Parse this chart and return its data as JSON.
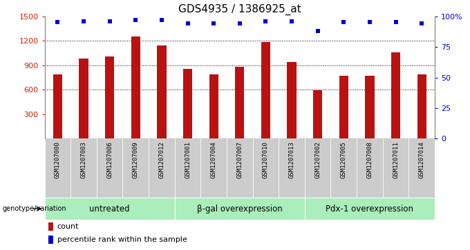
{
  "title": "GDS4935 / 1386925_at",
  "samples": [
    "GSM1207000",
    "GSM1207003",
    "GSM1207006",
    "GSM1207009",
    "GSM1207012",
    "GSM1207001",
    "GSM1207004",
    "GSM1207007",
    "GSM1207010",
    "GSM1207013",
    "GSM1207002",
    "GSM1207005",
    "GSM1207008",
    "GSM1207011",
    "GSM1207014"
  ],
  "counts": [
    790,
    980,
    1010,
    1255,
    1145,
    855,
    790,
    880,
    1185,
    940,
    595,
    775,
    775,
    1060,
    790
  ],
  "percentiles": [
    95,
    96,
    96,
    97,
    97,
    94,
    94,
    94,
    96,
    96,
    88,
    95,
    95,
    95,
    94
  ],
  "groups": [
    {
      "label": "untreated",
      "start": 0,
      "end": 5
    },
    {
      "label": "β-gal overexpression",
      "start": 5,
      "end": 10
    },
    {
      "label": "Pdx-1 overexpression",
      "start": 10,
      "end": 15
    }
  ],
  "bar_color": "#bb1111",
  "dot_color": "#0000cc",
  "group_color": "#aaeebb",
  "ylabel_left_color": "#cc2200",
  "ylabel_right_color": "#0000cc",
  "ylim_left": [
    0,
    1500
  ],
  "ylim_right": [
    0,
    100
  ],
  "yticks_left": [
    300,
    600,
    900,
    1200,
    1500
  ],
  "yticks_right": [
    0,
    25,
    50,
    75,
    100
  ],
  "legend_count": "count",
  "legend_percentile": "percentile rank within the sample",
  "genotype_label": "genotype/variation",
  "xtick_bg": "#cccccc",
  "title_fontsize": 11,
  "axis_fontsize": 8,
  "tick_fontsize": 6.5,
  "group_fontsize": 8.5
}
